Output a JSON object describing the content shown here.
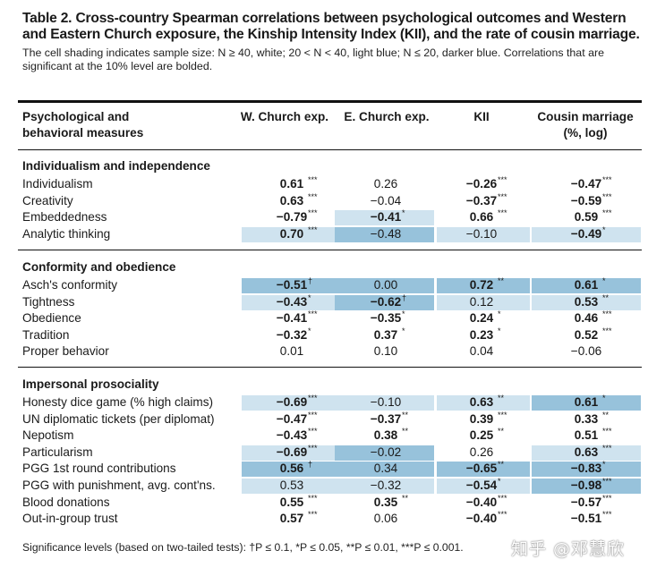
{
  "title": "Table 2. Cross-country Spearman correlations between psychological outcomes and Western and Eastern Church exposure, the Kinship Intensity Index (KII), and the rate of cousin marriage.",
  "caption": "The cell shading indicates sample size: N ≥ 40, white; 20 < N < 40, light blue; N ≤ 20, darker blue. Correlations that are significant at the 10% level are bolded.",
  "headers": {
    "measure": "Psychological and behavioral measures",
    "wchurch": "W. Church exp.",
    "echurch": "E. Church exp.",
    "kii": "KII",
    "cousin": "Cousin marriage (%, log)"
  },
  "footnote": "Significance levels (based on two-tailed tests): †P ≤ 0.1, *P ≤ 0.05, **P ≤ 0.01, ***P ≤ 0.001.",
  "watermark": "知乎 @邓慧欣",
  "colors": {
    "light_blue": "#cfe3ef",
    "dark_blue": "#97c2db"
  },
  "sections": [
    {
      "name": "Individualism and independence",
      "rows": [
        {
          "label": "Individualism",
          "cells": [
            {
              "v": "0.61",
              "s": "***",
              "b": true,
              "shade": ""
            },
            {
              "v": "0.26",
              "s": "",
              "b": false,
              "shade": ""
            },
            {
              "v": "−0.26",
              "s": "***",
              "b": true,
              "shade": ""
            },
            {
              "v": "−0.47",
              "s": "***",
              "b": true,
              "shade": ""
            }
          ]
        },
        {
          "label": "Creativity",
          "cells": [
            {
              "v": "0.63",
              "s": "***",
              "b": true,
              "shade": ""
            },
            {
              "v": "−0.04",
              "s": "",
              "b": false,
              "shade": ""
            },
            {
              "v": "−0.37",
              "s": "***",
              "b": true,
              "shade": ""
            },
            {
              "v": "−0.59",
              "s": "***",
              "b": true,
              "shade": ""
            }
          ]
        },
        {
          "label": "Embeddedness",
          "cells": [
            {
              "v": "−0.79",
              "s": "***",
              "b": true,
              "shade": ""
            },
            {
              "v": "−0.41",
              "s": "*",
              "b": true,
              "shade": "light"
            },
            {
              "v": "0.66",
              "s": "***",
              "b": true,
              "shade": ""
            },
            {
              "v": "0.59",
              "s": "***",
              "b": true,
              "shade": ""
            }
          ]
        },
        {
          "label": "Analytic thinking",
          "cells": [
            {
              "v": "0.70",
              "s": "***",
              "b": true,
              "shade": "light"
            },
            {
              "v": "−0.48",
              "s": "",
              "b": false,
              "shade": "dark"
            },
            {
              "v": "−0.10",
              "s": "",
              "b": false,
              "shade": "light"
            },
            {
              "v": "−0.49",
              "s": "*",
              "b": true,
              "shade": "light"
            }
          ]
        }
      ]
    },
    {
      "name": "Conformity and obedience",
      "rows": [
        {
          "label": "Asch's conformity",
          "cells": [
            {
              "v": "−0.51",
              "s": "†",
              "b": true,
              "shade": "dark"
            },
            {
              "v": "0.00",
              "s": "",
              "b": false,
              "shade": "dark"
            },
            {
              "v": "0.72",
              "s": "**",
              "b": true,
              "shade": "dark"
            },
            {
              "v": "0.61",
              "s": "*",
              "b": true,
              "shade": "dark"
            }
          ]
        },
        {
          "label": "Tightness",
          "cells": [
            {
              "v": "−0.43",
              "s": "*",
              "b": true,
              "shade": "light"
            },
            {
              "v": "−0.62",
              "s": "†",
              "b": true,
              "shade": "dark"
            },
            {
              "v": "0.12",
              "s": "",
              "b": false,
              "shade": "light"
            },
            {
              "v": "0.53",
              "s": "**",
              "b": true,
              "shade": "light"
            }
          ]
        },
        {
          "label": "Obedience",
          "cells": [
            {
              "v": "−0.41",
              "s": "***",
              "b": true,
              "shade": ""
            },
            {
              "v": "−0.35",
              "s": "*",
              "b": true,
              "shade": ""
            },
            {
              "v": "0.24",
              "s": "*",
              "b": true,
              "shade": ""
            },
            {
              "v": "0.46",
              "s": "***",
              "b": true,
              "shade": ""
            }
          ]
        },
        {
          "label": "Tradition",
          "cells": [
            {
              "v": "−0.32",
              "s": "*",
              "b": true,
              "shade": ""
            },
            {
              "v": "0.37",
              "s": "*",
              "b": true,
              "shade": ""
            },
            {
              "v": "0.23",
              "s": "*",
              "b": true,
              "shade": ""
            },
            {
              "v": "0.52",
              "s": "***",
              "b": true,
              "shade": ""
            }
          ]
        },
        {
          "label": "Proper behavior",
          "cells": [
            {
              "v": "0.01",
              "s": "",
              "b": false,
              "shade": ""
            },
            {
              "v": "0.10",
              "s": "",
              "b": false,
              "shade": ""
            },
            {
              "v": "0.04",
              "s": "",
              "b": false,
              "shade": ""
            },
            {
              "v": "−0.06",
              "s": "",
              "b": false,
              "shade": ""
            }
          ]
        }
      ]
    },
    {
      "name": "Impersonal prosociality",
      "rows": [
        {
          "label": "Honesty dice game (% high claims)",
          "cells": [
            {
              "v": "−0.69",
              "s": "***",
              "b": true,
              "shade": "light"
            },
            {
              "v": "−0.10",
              "s": "",
              "b": false,
              "shade": "light"
            },
            {
              "v": "0.63",
              "s": "**",
              "b": true,
              "shade": "light"
            },
            {
              "v": "0.61",
              "s": "*",
              "b": true,
              "shade": "dark"
            }
          ]
        },
        {
          "label": "UN diplomatic tickets (per diplomat)",
          "cells": [
            {
              "v": "−0.47",
              "s": "***",
              "b": true,
              "shade": ""
            },
            {
              "v": "−0.37",
              "s": "**",
              "b": true,
              "shade": ""
            },
            {
              "v": "0.39",
              "s": "***",
              "b": true,
              "shade": ""
            },
            {
              "v": "0.33",
              "s": "**",
              "b": true,
              "shade": ""
            }
          ]
        },
        {
          "label": "Nepotism",
          "cells": [
            {
              "v": "−0.43",
              "s": "***",
              "b": true,
              "shade": ""
            },
            {
              "v": "0.38",
              "s": "**",
              "b": true,
              "shade": ""
            },
            {
              "v": "0.25",
              "s": "**",
              "b": true,
              "shade": ""
            },
            {
              "v": "0.51",
              "s": "***",
              "b": true,
              "shade": ""
            }
          ]
        },
        {
          "label": "Particularism",
          "cells": [
            {
              "v": "−0.69",
              "s": "***",
              "b": true,
              "shade": "light"
            },
            {
              "v": "−0.02",
              "s": "",
              "b": false,
              "shade": "dark"
            },
            {
              "v": "0.26",
              "s": "",
              "b": false,
              "shade": ""
            },
            {
              "v": "0.63",
              "s": "***",
              "b": true,
              "shade": "light"
            }
          ]
        },
        {
          "label": "PGG 1st round contributions",
          "cells": [
            {
              "v": "0.56",
              "s": "†",
              "b": true,
              "shade": "dark"
            },
            {
              "v": "0.34",
              "s": "",
              "b": false,
              "shade": "dark"
            },
            {
              "v": "−0.65",
              "s": "**",
              "b": true,
              "shade": "dark"
            },
            {
              "v": "−0.83",
              "s": "*",
              "b": true,
              "shade": "dark"
            }
          ]
        },
        {
          "label": "PGG with punishment, avg. cont'ns.",
          "cells": [
            {
              "v": "0.53",
              "s": "",
              "b": false,
              "shade": "light"
            },
            {
              "v": "−0.32",
              "s": "",
              "b": false,
              "shade": "light"
            },
            {
              "v": "−0.54",
              "s": "*",
              "b": true,
              "shade": "light"
            },
            {
              "v": "−0.98",
              "s": "***",
              "b": true,
              "shade": "dark"
            }
          ]
        },
        {
          "label": "Blood donations",
          "cells": [
            {
              "v": "0.55",
              "s": "***",
              "b": true,
              "shade": ""
            },
            {
              "v": "0.35",
              "s": "**",
              "b": true,
              "shade": ""
            },
            {
              "v": "−0.40",
              "s": "***",
              "b": true,
              "shade": ""
            },
            {
              "v": "−0.57",
              "s": "***",
              "b": true,
              "shade": ""
            }
          ]
        },
        {
          "label": "Out-in-group trust",
          "cells": [
            {
              "v": "0.57",
              "s": "***",
              "b": true,
              "shade": ""
            },
            {
              "v": "0.06",
              "s": "",
              "b": false,
              "shade": ""
            },
            {
              "v": "−0.40",
              "s": "***",
              "b": true,
              "shade": ""
            },
            {
              "v": "−0.51",
              "s": "***",
              "b": true,
              "shade": ""
            }
          ]
        }
      ]
    }
  ]
}
